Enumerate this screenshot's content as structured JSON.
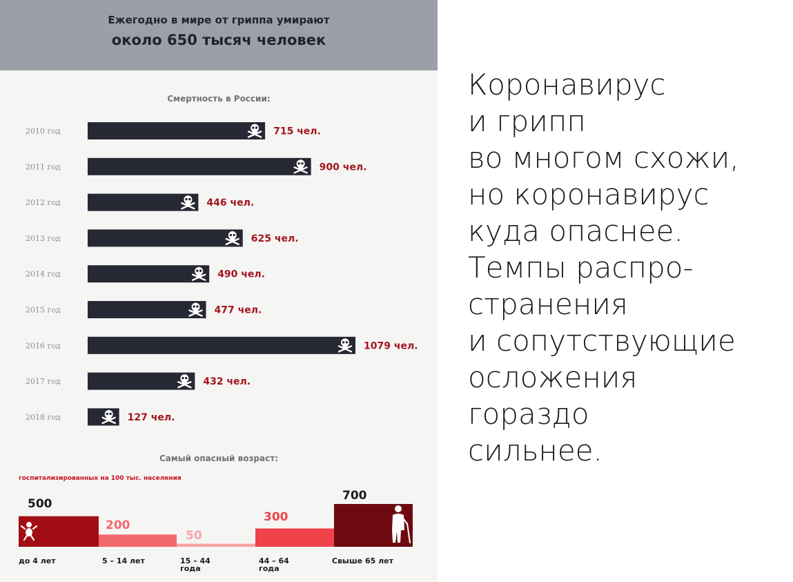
{
  "header": {
    "line1": "Ежегодно в мире от гриппа умирают",
    "line2": "около 650 тысяч человек"
  },
  "chart_data": [
    {
      "type": "bar",
      "orientation": "horizontal",
      "title": "Смертность в России:",
      "categories": [
        "2010 год",
        "2011 год",
        "2012 год",
        "2013 год",
        "2014 год",
        "2015 год",
        "2016 год",
        "2017 год",
        "2018 год"
      ],
      "values": [
        715,
        900,
        446,
        625,
        490,
        477,
        1079,
        432,
        127
      ],
      "value_labels": [
        "715 чел.",
        "900 чел.",
        "446 чел.",
        "625 чел.",
        "490 чел.",
        "477 чел.",
        "1079 чел.",
        "432 чел.",
        "127 чел."
      ],
      "bar_color": "#262833",
      "label_color": "#a3151c",
      "marker_icon": "skull-crossbones-icon"
    },
    {
      "type": "bar",
      "title": "Самый опасный возраст:",
      "subtitle": "госпитализированных на 100 тыс. населения",
      "categories": [
        "до 4 лет",
        "5 – 14 лет",
        "15 – 44 года",
        "44 – 64 года",
        "Свыше 65 лет"
      ],
      "values": [
        500,
        200,
        50,
        300,
        700
      ],
      "colors": [
        "#a30d14",
        "#f2696d",
        "#f7a5a6",
        "#f0424a",
        "#6d0a10"
      ],
      "icons": [
        "baby-icon",
        "",
        "",
        "",
        "elderly-person-icon"
      ]
    }
  ],
  "side_text": {
    "lines": [
      "Коронавирус",
      "и грипп",
      "во многом схожи,",
      "но коронавирус",
      "куда опаснее.",
      "Темпы распро-",
      "странения",
      "и сопутствующие",
      "осложения",
      "гораздо",
      "сильнее."
    ]
  }
}
